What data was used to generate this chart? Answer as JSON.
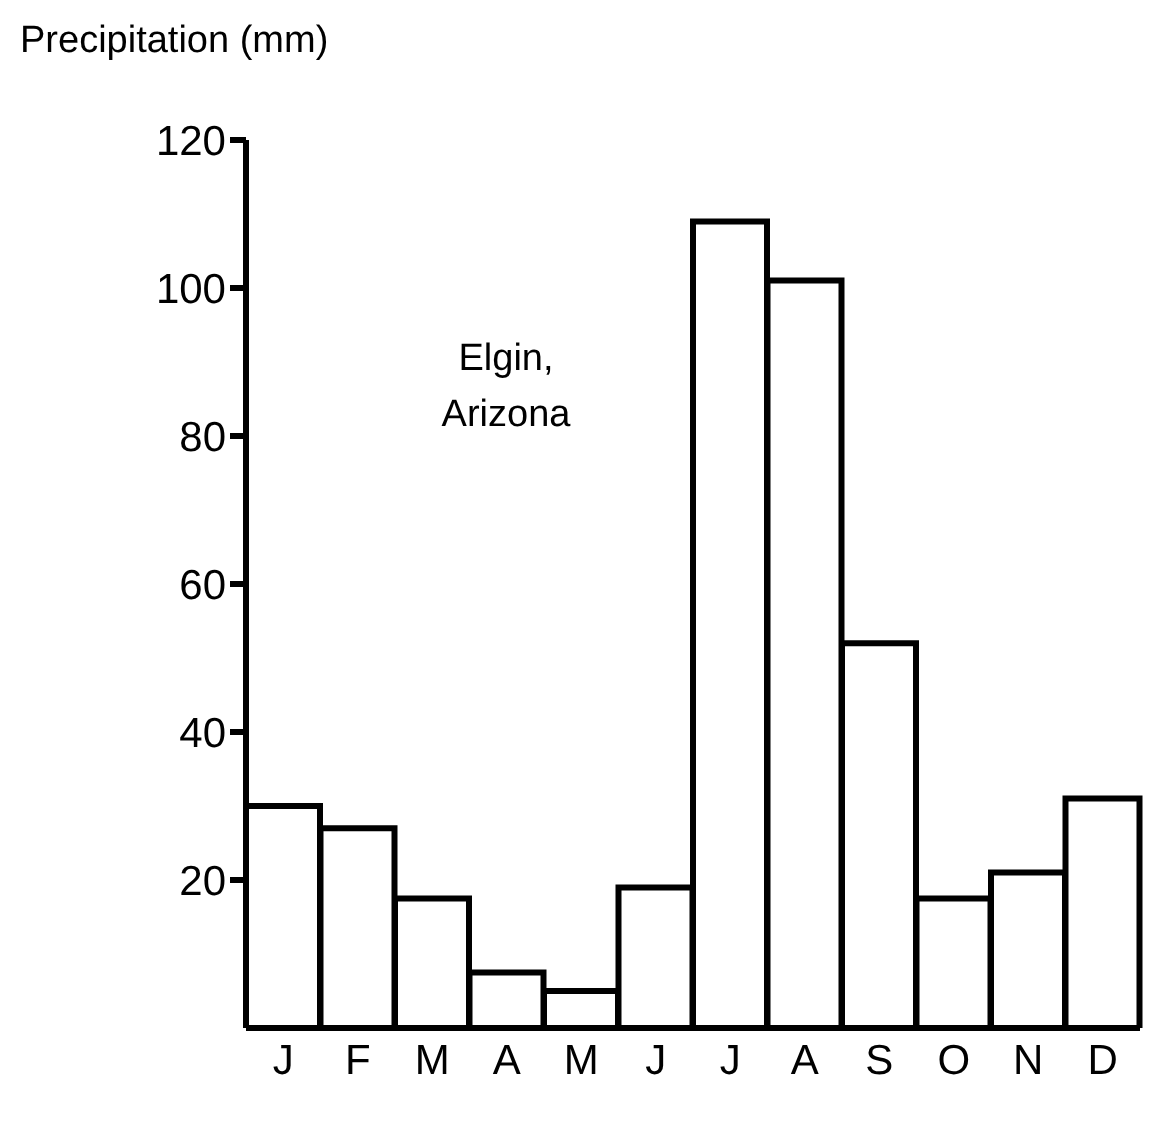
{
  "chart_data": {
    "type": "bar",
    "ylabel": "Precipitation (mm)",
    "annotations": [
      "Elgin, Arizona"
    ],
    "categories": [
      "J",
      "F",
      "M",
      "A",
      "M",
      "J",
      "J",
      "A",
      "S",
      "O",
      "N",
      "D"
    ],
    "values": [
      30,
      27,
      17.5,
      7.5,
      5,
      19,
      109,
      101,
      52,
      17.5,
      21,
      31
    ],
    "color": "#ffffff",
    "ylim": [
      0,
      120
    ],
    "yticks": [
      20,
      40,
      60,
      80,
      100,
      120
    ],
    "grid": false
  }
}
